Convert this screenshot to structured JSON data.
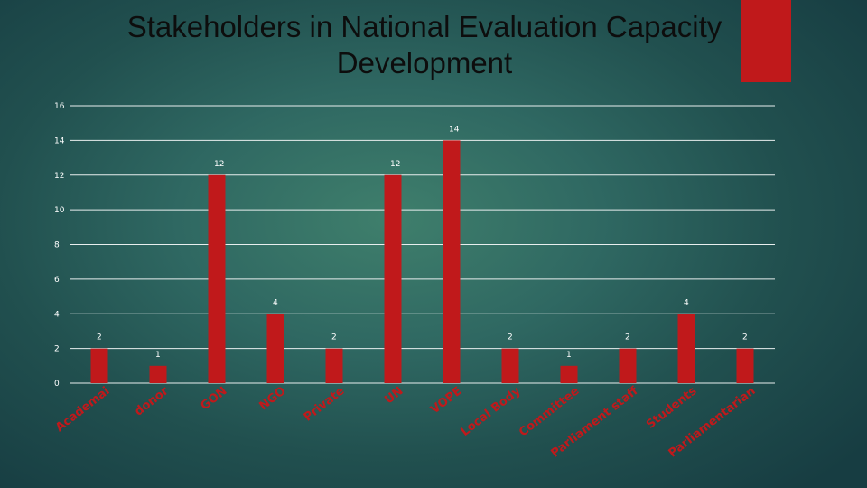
{
  "slide": {
    "title": "Stakeholders in National Evaluation Capacity Development",
    "accent_color": "#c0191b"
  },
  "chart_data": {
    "type": "bar",
    "title": "Stakeholders in National Evaluation Capacity Development",
    "categories": [
      "Academai",
      "donor",
      "GON",
      "NGO",
      "Private",
      "UN",
      "VOPE",
      "Local Body",
      "Committee",
      "Parliament staff",
      "Students",
      "Parliamentarian"
    ],
    "values": [
      2,
      1,
      12,
      4,
      2,
      12,
      14,
      2,
      1,
      2,
      4,
      2
    ],
    "data_labels": [
      "2",
      "1",
      "12",
      "4",
      "2",
      "12",
      "14",
      "2",
      "1",
      "2",
      "4",
      "2"
    ],
    "yticks": [
      "0",
      "2",
      "4",
      "6",
      "8",
      "10",
      "12",
      "14",
      "16"
    ],
    "ylim": [
      0,
      16
    ],
    "xlabel": "",
    "ylabel": "",
    "grid": true,
    "legend": "none",
    "bar_color": "#c0191b"
  }
}
